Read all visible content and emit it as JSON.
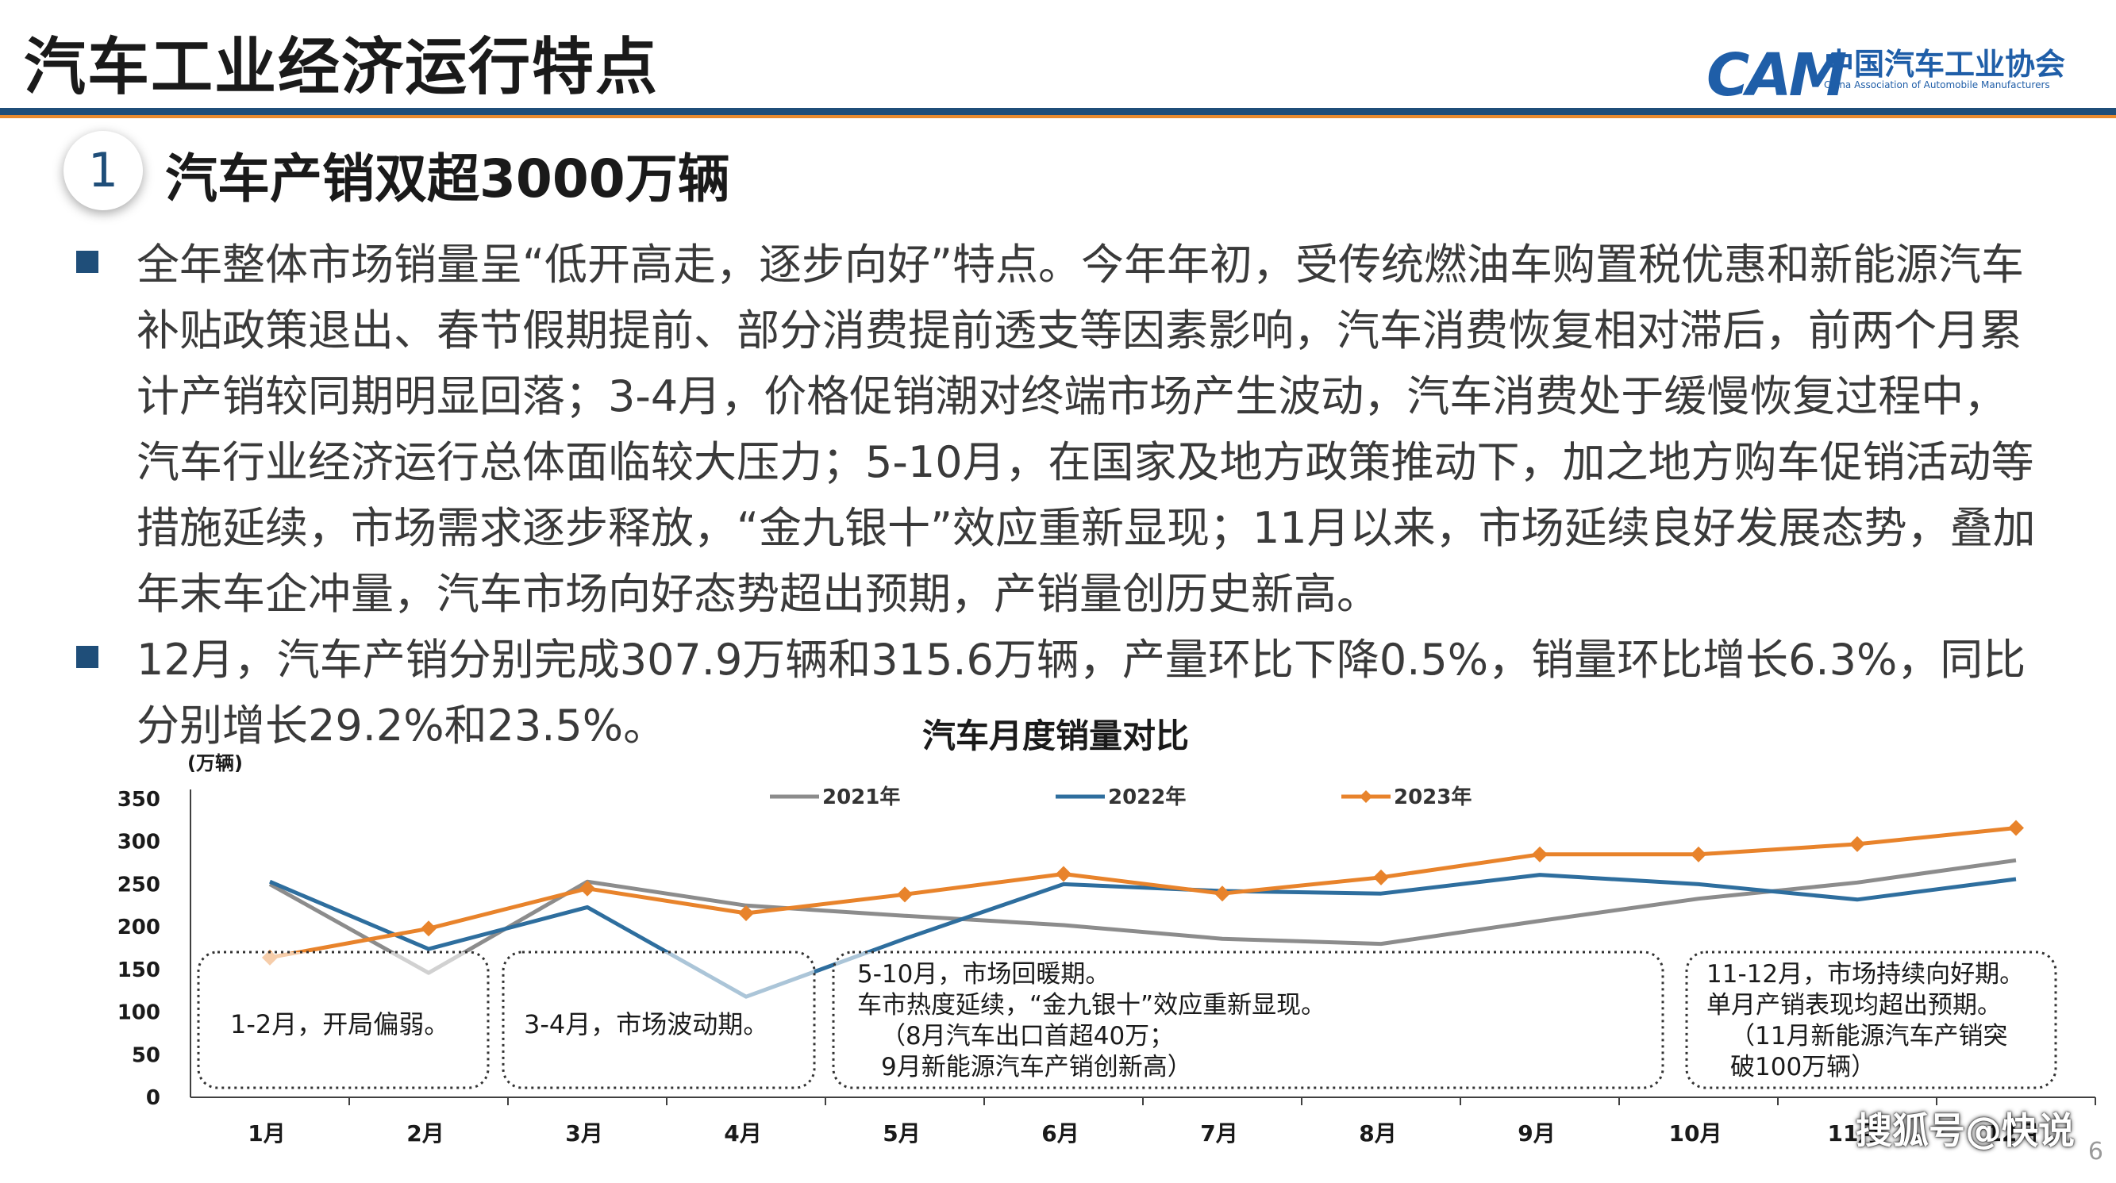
{
  "header": {
    "title": "汽车工业经济运行特点",
    "logo_cn": "中国汽车工业协会",
    "logo_en": "China Association of Automobile Manufacturers",
    "logo_mark": "CAM"
  },
  "section": {
    "number": "1",
    "title": "汽车产销双超3000万辆"
  },
  "bullets": [
    "全年整体市场销量呈“低开高走，逐步向好”特点。今年年初，受传统燃油车购置税优惠和新能源汽车补贴政策退出、春节假期提前、部分消费提前透支等因素影响，汽车消费恢复相对滞后，前两个月累计产销较同期明显回落；3-4月，价格促销潮对终端市场产生波动，汽车消费处于缓慢恢复过程中，汽车行业经济运行总体面临较大压力；5-10月，在国家及地方政策推动下，加之地方购车促销活动等措施延续，市场需求逐步释放，“金九银十”效应重新显现；11月以来，市场延续良好发展态势，叠加年末车企冲量，汽车市场向好态势超出预期，产销量创历史新高。",
    "12月，汽车产销分别完成307.9万辆和315.6万辆，产量环比下降0.5%，销量环比增长6.3%，同比分别增长29.2%和23.5%。"
  ],
  "chart_data": {
    "type": "line",
    "title": "汽车月度销量对比",
    "ylabel": "(万辆)",
    "ylim": [
      0,
      350
    ],
    "yticks": [
      0,
      50,
      100,
      150,
      200,
      250,
      300,
      350
    ],
    "categories": [
      "1月",
      "2月",
      "3月",
      "4月",
      "5月",
      "6月",
      "7月",
      "8月",
      "9月",
      "10月",
      "11月",
      "12月"
    ],
    "series": [
      {
        "name": "2021年",
        "color": "#8c8c8c",
        "marker": "none",
        "values": [
          250,
          146,
          253,
          225,
          213,
          202,
          186,
          180,
          207,
          233,
          252,
          278
        ]
      },
      {
        "name": "2022年",
        "color": "#2e6e9e",
        "marker": "none",
        "values": [
          253,
          174,
          223,
          118,
          186,
          250,
          242,
          239,
          261,
          250,
          232,
          256
        ]
      },
      {
        "name": "2023年",
        "color": "#e8832b",
        "marker": "diamond",
        "values": [
          164,
          198,
          245,
          216,
          238,
          262,
          239,
          258,
          285,
          285,
          297,
          316
        ]
      }
    ],
    "legend_position": "top",
    "grid": false,
    "annotations": [
      {
        "lines": [
          "1-2月，开局偏弱。"
        ]
      },
      {
        "lines": [
          "3-4月，市场波动期。"
        ]
      },
      {
        "lines": [
          "5-10月，市场回暖期。",
          "车市热度延续，“金九银十”效应重新显现。",
          "（8月汽车出口首超40万；",
          "9月新能源汽车产销创新高）"
        ]
      },
      {
        "lines": [
          "11-12月，市场持续向好期。",
          "单月产销表现均超出预期。",
          "（11月新能源汽车产销突",
          "破100万辆）"
        ]
      }
    ]
  },
  "footer": {
    "watermark": "搜狐号@快说",
    "page_number": "6"
  }
}
